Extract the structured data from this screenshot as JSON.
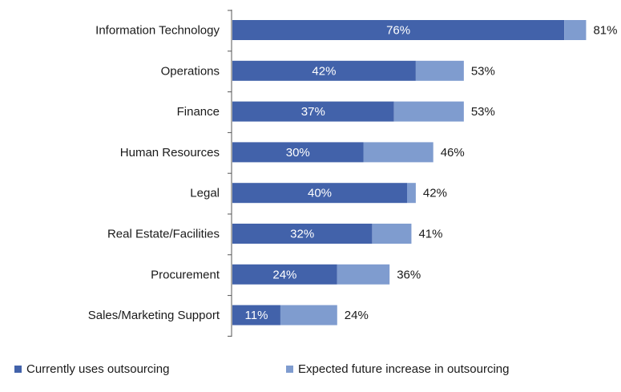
{
  "chart_data": {
    "type": "bar",
    "orientation": "horizontal",
    "stacked": true,
    "categories": [
      "Information Technology",
      "Operations",
      "Finance",
      "Human Resources",
      "Legal",
      "Real Estate/Facilities",
      "Procurement",
      "Sales/Marketing Support"
    ],
    "series": [
      {
        "name": "Currently uses outsourcing",
        "values": [
          76,
          42,
          37,
          30,
          40,
          32,
          24,
          11
        ],
        "color": "#4262aa"
      },
      {
        "name": "Expected future increase in outsourcing",
        "values": [
          5,
          11,
          16,
          16,
          2,
          9,
          12,
          13
        ],
        "color": "#7f9ccf"
      }
    ],
    "current_labels": [
      "76%",
      "42%",
      "37%",
      "30%",
      "40%",
      "32%",
      "24%",
      "11%"
    ],
    "total_labels": [
      "81%",
      "53%",
      "53%",
      "46%",
      "42%",
      "41%",
      "36%",
      "24%"
    ],
    "xlim": [
      0,
      100
    ],
    "grid": false,
    "legend_position": "bottom"
  }
}
